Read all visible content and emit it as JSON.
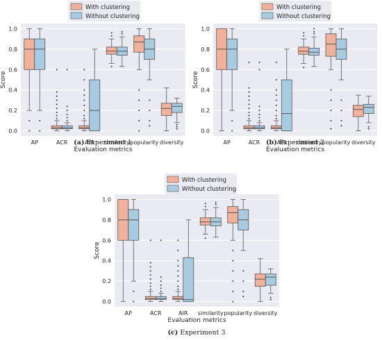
{
  "colors": {
    "with": "#f2b19a",
    "without": "#a7cbe0",
    "panel_bg": "#eaeaf2",
    "grid": "#ffffff",
    "box_edge": "#555555",
    "median": "#555555"
  },
  "legend": [
    "With clustering",
    "Without clustering"
  ],
  "chart_data": [
    {
      "type": "box",
      "caption_letter": "(a)",
      "caption_text": "Experiment 1",
      "xlabel": "Evaluation metrics",
      "ylabel": "Score",
      "ylim": [
        -0.05,
        1.05
      ],
      "yticks": [
        "0.0",
        "0.2",
        "0.4",
        "0.6",
        "0.8",
        "1.0"
      ],
      "categories": [
        "AP",
        "ACR",
        "AIR",
        "similarity",
        "popularity",
        "diversity"
      ],
      "legend_position": "top-center",
      "grid": true,
      "series": [
        {
          "name": "With clustering",
          "boxes": [
            {
              "min": 0.2,
              "q1": 0.6,
              "median": 0.8,
              "q3": 0.9,
              "max": 1.0,
              "outliers": [
                0.0,
                0.1
              ]
            },
            {
              "min": 0.0,
              "q1": 0.02,
              "median": 0.03,
              "q3": 0.05,
              "max": 0.1,
              "outliers": [
                0.12,
                0.15,
                0.18,
                0.22,
                0.26,
                0.3,
                0.34,
                0.38,
                0.6
              ]
            },
            {
              "min": 0.0,
              "q1": 0.02,
              "median": 0.03,
              "q3": 0.05,
              "max": 0.1,
              "outliers": [
                0.12,
                0.15,
                0.2,
                0.25,
                0.3,
                0.35,
                0.4,
                0.5,
                0.6
              ]
            },
            {
              "min": 0.66,
              "q1": 0.75,
              "median": 0.78,
              "q3": 0.82,
              "max": 0.9,
              "outliers": [
                0.63,
                0.93,
                0.96
              ]
            },
            {
              "min": 0.6,
              "q1": 0.77,
              "median": 0.87,
              "q3": 0.93,
              "max": 1.0,
              "outliers": [
                0.0,
                0.1,
                0.2,
                0.3,
                0.4
              ]
            },
            {
              "min": 0.0,
              "q1": 0.15,
              "median": 0.22,
              "q3": 0.27,
              "max": 0.42,
              "outliers": []
            }
          ]
        },
        {
          "name": "Without clustering",
          "boxes": [
            {
              "min": 0.2,
              "q1": 0.6,
              "median": 0.8,
              "q3": 0.9,
              "max": 1.0,
              "outliers": [
                0.0,
                0.1
              ]
            },
            {
              "min": 0.0,
              "q1": 0.02,
              "median": 0.03,
              "q3": 0.05,
              "max": 0.08,
              "outliers": [
                0.1,
                0.13,
                0.16,
                0.2,
                0.24,
                0.6
              ]
            },
            {
              "min": 0.0,
              "q1": 0.0,
              "median": 0.2,
              "q3": 0.5,
              "max": 0.8,
              "outliers": []
            },
            {
              "min": 0.63,
              "q1": 0.74,
              "median": 0.78,
              "q3": 0.82,
              "max": 0.92,
              "outliers": [
                0.95,
                0.97
              ]
            },
            {
              "min": 0.5,
              "q1": 0.7,
              "median": 0.8,
              "q3": 0.9,
              "max": 1.0,
              "outliers": [
                0.05,
                0.1,
                0.2,
                0.3
              ]
            },
            {
              "min": 0.08,
              "q1": 0.18,
              "median": 0.24,
              "q3": 0.27,
              "max": 0.32,
              "outliers": [
                0.02,
                0.04,
                0.06
              ]
            }
          ]
        }
      ]
    },
    {
      "type": "box",
      "caption_letter": "(b)",
      "caption_text": "Experiment 2",
      "xlabel": "Evaluation metrics",
      "ylabel": "Score",
      "ylim": [
        -0.05,
        1.05
      ],
      "yticks": [
        "0.0",
        "0.2",
        "0.4",
        "0.6",
        "0.8",
        "1.0"
      ],
      "categories": [
        "AP",
        "ACR",
        "AIR",
        "similarity",
        "popularity",
        "diversity"
      ],
      "legend_position": "top-center",
      "grid": true,
      "series": [
        {
          "name": "With clustering",
          "boxes": [
            {
              "min": 0.0,
              "q1": 0.6,
              "median": 0.8,
              "q3": 1.0,
              "max": 1.0,
              "outliers": []
            },
            {
              "min": 0.0,
              "q1": 0.02,
              "median": 0.03,
              "q3": 0.05,
              "max": 0.1,
              "outliers": [
                0.12,
                0.15,
                0.18,
                0.22,
                0.26,
                0.3,
                0.34,
                0.38,
                0.42,
                0.67
              ]
            },
            {
              "min": 0.0,
              "q1": 0.02,
              "median": 0.03,
              "q3": 0.05,
              "max": 0.1,
              "outliers": [
                0.12,
                0.15,
                0.2,
                0.25,
                0.3,
                0.35,
                0.4,
                0.5,
                0.67
              ]
            },
            {
              "min": 0.66,
              "q1": 0.75,
              "median": 0.78,
              "q3": 0.82,
              "max": 0.9,
              "outliers": [
                0.62,
                0.93,
                0.96
              ]
            },
            {
              "min": 0.6,
              "q1": 0.73,
              "median": 0.85,
              "q3": 0.95,
              "max": 1.0,
              "outliers": [
                0.02,
                0.1,
                0.2,
                0.3,
                0.4
              ]
            },
            {
              "min": 0.0,
              "q1": 0.14,
              "median": 0.21,
              "q3": 0.25,
              "max": 0.35,
              "outliers": []
            }
          ]
        },
        {
          "name": "Without clustering",
          "boxes": [
            {
              "min": 0.2,
              "q1": 0.6,
              "median": 0.8,
              "q3": 0.9,
              "max": 1.0,
              "outliers": [
                0.0,
                0.1
              ]
            },
            {
              "min": 0.0,
              "q1": 0.02,
              "median": 0.03,
              "q3": 0.05,
              "max": 0.08,
              "outliers": [
                0.1,
                0.13,
                0.16,
                0.2,
                0.24,
                0.6,
                0.67
              ]
            },
            {
              "min": 0.0,
              "q1": 0.0,
              "median": 0.17,
              "q3": 0.5,
              "max": 0.8,
              "outliers": []
            },
            {
              "min": 0.63,
              "q1": 0.74,
              "median": 0.77,
              "q3": 0.81,
              "max": 0.92,
              "outliers": [
                0.95,
                0.97,
                1.0
              ]
            },
            {
              "min": 0.5,
              "q1": 0.7,
              "median": 0.8,
              "q3": 0.9,
              "max": 1.0,
              "outliers": [
                0.05,
                0.1,
                0.2,
                0.3
              ]
            },
            {
              "min": 0.08,
              "q1": 0.17,
              "median": 0.23,
              "q3": 0.26,
              "max": 0.34,
              "outliers": [
                0.02,
                0.04
              ]
            }
          ]
        }
      ]
    },
    {
      "type": "box",
      "caption_letter": "(c)",
      "caption_text": "Experiment 3",
      "xlabel": "Evaluation metrics",
      "ylabel": "Score",
      "ylim": [
        -0.05,
        1.05
      ],
      "yticks": [
        "0.0",
        "0.2",
        "0.4",
        "0.6",
        "0.8",
        "1.0"
      ],
      "categories": [
        "AP",
        "ACR",
        "AIR",
        "similarity",
        "popularity",
        "diversity"
      ],
      "legend_position": "top-center",
      "grid": true,
      "series": [
        {
          "name": "With clustering",
          "boxes": [
            {
              "min": 0.0,
              "q1": 0.6,
              "median": 0.8,
              "q3": 1.0,
              "max": 1.0,
              "outliers": []
            },
            {
              "min": 0.0,
              "q1": 0.02,
              "median": 0.03,
              "q3": 0.05,
              "max": 0.1,
              "outliers": [
                0.12,
                0.15,
                0.18,
                0.22,
                0.26,
                0.3,
                0.34,
                0.38,
                0.6
              ]
            },
            {
              "min": 0.0,
              "q1": 0.02,
              "median": 0.03,
              "q3": 0.05,
              "max": 0.1,
              "outliers": [
                0.12,
                0.15,
                0.2,
                0.25,
                0.3,
                0.35,
                0.4,
                0.5,
                0.6
              ]
            },
            {
              "min": 0.66,
              "q1": 0.75,
              "median": 0.78,
              "q3": 0.82,
              "max": 0.9,
              "outliers": [
                0.62,
                0.93,
                0.96
              ]
            },
            {
              "min": 0.6,
              "q1": 0.77,
              "median": 0.87,
              "q3": 0.93,
              "max": 1.0,
              "outliers": [
                0.0,
                0.1,
                0.2,
                0.3,
                0.4,
                0.5
              ]
            },
            {
              "min": 0.0,
              "q1": 0.15,
              "median": 0.22,
              "q3": 0.27,
              "max": 0.42,
              "outliers": []
            }
          ]
        },
        {
          "name": "Without clustering",
          "boxes": [
            {
              "min": 0.2,
              "q1": 0.6,
              "median": 0.8,
              "q3": 0.9,
              "max": 1.0,
              "outliers": [
                0.0,
                0.1
              ]
            },
            {
              "min": 0.0,
              "q1": 0.02,
              "median": 0.03,
              "q3": 0.05,
              "max": 0.08,
              "outliers": [
                0.1,
                0.13,
                0.16,
                0.2,
                0.24,
                0.6
              ]
            },
            {
              "min": 0.0,
              "q1": 0.0,
              "median": 0.02,
              "q3": 0.43,
              "max": 0.8,
              "outliers": []
            },
            {
              "min": 0.63,
              "q1": 0.74,
              "median": 0.78,
              "q3": 0.82,
              "max": 0.92,
              "outliers": [
                0.95,
                0.97
              ]
            },
            {
              "min": 0.5,
              "q1": 0.7,
              "median": 0.8,
              "q3": 0.9,
              "max": 1.0,
              "outliers": [
                0.05,
                0.1,
                0.2,
                0.3
              ]
            },
            {
              "min": 0.08,
              "q1": 0.16,
              "median": 0.24,
              "q3": 0.27,
              "max": 0.32,
              "outliers": [
                0.02,
                0.04
              ]
            }
          ]
        }
      ]
    }
  ]
}
